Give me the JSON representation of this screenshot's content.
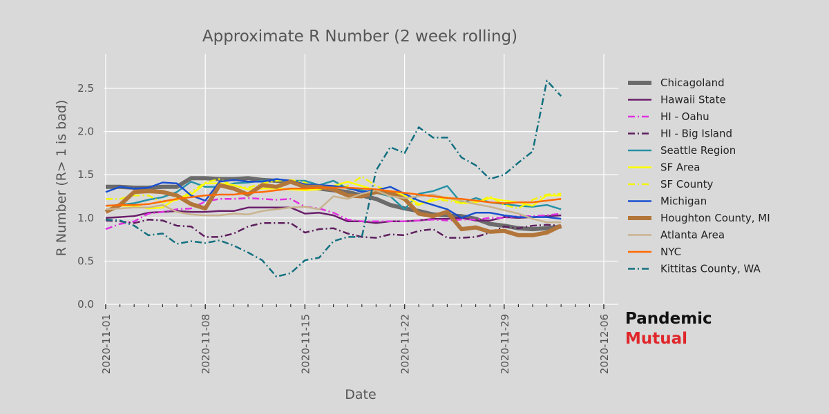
{
  "brand": {
    "line1": "Pandemic",
    "line2": "Mutual"
  },
  "chart_data": {
    "type": "line",
    "title": "Approximate R Number (2 week rolling)",
    "xlabel": "Date",
    "ylabel": "R Number (R> 1 is bad)",
    "xlim": [
      "2020-11-01",
      "2020-12-06"
    ],
    "ylim": [
      0,
      2.9
    ],
    "x_ticks": [
      "2020-11-01",
      "2020-11-08",
      "2020-11-15",
      "2020-11-22",
      "2020-11-29",
      "2020-12-06"
    ],
    "y_ticks": [
      0.0,
      0.5,
      1.0,
      1.5,
      2.0,
      2.5
    ],
    "y_tick_labels": [
      "0.0",
      "0.5",
      "1.0",
      "1.5",
      "2.0",
      "2.5"
    ],
    "grid": true,
    "legend_position": "right",
    "x": [
      "2020-11-01",
      "2020-11-02",
      "2020-11-03",
      "2020-11-04",
      "2020-11-05",
      "2020-11-06",
      "2020-11-07",
      "2020-11-08",
      "2020-11-09",
      "2020-11-10",
      "2020-11-11",
      "2020-11-12",
      "2020-11-13",
      "2020-11-14",
      "2020-11-15",
      "2020-11-16",
      "2020-11-17",
      "2020-11-18",
      "2020-11-19",
      "2020-11-20",
      "2020-11-21",
      "2020-11-22",
      "2020-11-23",
      "2020-11-24",
      "2020-11-25",
      "2020-11-26",
      "2020-11-27",
      "2020-11-28",
      "2020-11-29",
      "2020-11-30",
      "2020-12-01",
      "2020-12-02",
      "2020-12-03"
    ],
    "series": [
      {
        "name": "Chicagoland",
        "color": "#6b6b6b",
        "width": 6,
        "dash": "solid",
        "values": [
          1.36,
          1.36,
          1.35,
          1.35,
          1.36,
          1.36,
          1.46,
          1.46,
          1.45,
          1.45,
          1.46,
          1.44,
          1.43,
          1.42,
          1.36,
          1.34,
          1.32,
          1.3,
          1.26,
          1.22,
          1.15,
          1.11,
          1.08,
          1.04,
          1.03,
          1.02,
          0.99,
          0.93,
          0.91,
          0.88,
          0.87,
          0.88,
          0.9
        ]
      },
      {
        "name": "Hawaii State",
        "color": "#6a1f6a",
        "width": 2.5,
        "dash": "solid",
        "values": [
          1.0,
          1.01,
          1.02,
          1.06,
          1.07,
          1.08,
          1.07,
          1.07,
          1.08,
          1.08,
          1.12,
          1.12,
          1.12,
          1.12,
          1.05,
          1.06,
          1.03,
          0.96,
          0.96,
          0.94,
          0.96,
          0.96,
          0.97,
          0.99,
          0.99,
          1.0,
          0.97,
          0.97,
          1.01,
          1.0,
          1.01,
          1.02,
          1.03
        ]
      },
      {
        "name": "HI - Oahu",
        "color": "#e031e0",
        "width": 2.5,
        "dash": "dashdot",
        "values": [
          0.87,
          0.93,
          0.96,
          1.05,
          1.07,
          1.1,
          1.11,
          1.19,
          1.22,
          1.22,
          1.23,
          1.22,
          1.21,
          1.22,
          1.13,
          1.11,
          1.06,
          0.98,
          0.96,
          0.96,
          0.96,
          0.96,
          0.97,
          0.98,
          0.97,
          0.98,
          0.98,
          1.0,
          1.0,
          1.02,
          1.02,
          1.03,
          1.05
        ]
      },
      {
        "name": "HI - Big Island",
        "color": "#5e1f5e",
        "width": 2.5,
        "dash": "dashdot",
        "values": [
          0.97,
          0.96,
          0.94,
          0.98,
          0.97,
          0.91,
          0.9,
          0.78,
          0.78,
          0.82,
          0.9,
          0.94,
          0.94,
          0.94,
          0.83,
          0.87,
          0.88,
          0.82,
          0.78,
          0.77,
          0.81,
          0.8,
          0.85,
          0.87,
          0.77,
          0.77,
          0.78,
          0.83,
          0.9,
          0.88,
          0.91,
          0.92,
          0.91
        ]
      },
      {
        "name": "Seattle Region",
        "color": "#2592a6",
        "width": 2.5,
        "dash": "solid",
        "values": [
          1.14,
          1.15,
          1.17,
          1.21,
          1.24,
          1.3,
          1.42,
          1.36,
          1.36,
          1.4,
          1.41,
          1.43,
          1.44,
          1.43,
          1.43,
          1.38,
          1.43,
          1.34,
          1.32,
          1.29,
          1.25,
          1.1,
          1.28,
          1.31,
          1.37,
          1.17,
          1.23,
          1.18,
          1.16,
          1.14,
          1.13,
          1.15,
          1.1
        ]
      },
      {
        "name": "SF Area",
        "color": "#ffff00",
        "width": 2.5,
        "dash": "solid",
        "values": [
          1.14,
          1.14,
          1.14,
          1.11,
          1.12,
          1.23,
          1.27,
          1.4,
          1.4,
          1.38,
          1.33,
          1.34,
          1.34,
          1.33,
          1.32,
          1.33,
          1.37,
          1.42,
          1.37,
          1.32,
          1.31,
          1.26,
          1.16,
          1.2,
          1.24,
          1.17,
          1.18,
          1.23,
          1.2,
          1.18,
          1.14,
          1.26,
          1.26
        ]
      },
      {
        "name": "SF County",
        "color": "#f5f500",
        "width": 2.5,
        "dash": "dashdot",
        "values": [
          1.22,
          1.22,
          1.26,
          1.26,
          1.18,
          1.21,
          1.3,
          1.41,
          1.45,
          1.37,
          1.35,
          1.4,
          1.43,
          1.44,
          1.41,
          1.33,
          1.34,
          1.37,
          1.48,
          1.37,
          1.3,
          1.2,
          1.15,
          1.22,
          1.2,
          1.17,
          1.17,
          1.25,
          1.15,
          1.11,
          1.21,
          1.27,
          1.28
        ]
      },
      {
        "name": "Michigan",
        "color": "#1a4fcf",
        "width": 2.5,
        "dash": "solid",
        "values": [
          1.3,
          1.36,
          1.34,
          1.35,
          1.41,
          1.4,
          1.26,
          1.2,
          1.42,
          1.44,
          1.42,
          1.42,
          1.45,
          1.43,
          1.39,
          1.38,
          1.37,
          1.35,
          1.3,
          1.32,
          1.36,
          1.28,
          1.2,
          1.15,
          1.1,
          1.0,
          1.06,
          1.06,
          1.03,
          1.01,
          1.01,
          1.01,
          0.99
        ]
      },
      {
        "name": "Houghton County, MI",
        "color": "#b3763a",
        "width": 6,
        "dash": "solid",
        "values": [
          1.07,
          1.15,
          1.3,
          1.31,
          1.3,
          1.26,
          1.16,
          1.11,
          1.38,
          1.34,
          1.27,
          1.38,
          1.36,
          1.42,
          1.36,
          1.36,
          1.33,
          1.26,
          1.25,
          1.3,
          1.29,
          1.22,
          1.05,
          1.02,
          1.07,
          0.87,
          0.89,
          0.84,
          0.85,
          0.8,
          0.8,
          0.83,
          0.91
        ]
      },
      {
        "name": "Atlanta Area",
        "color": "#c9b38e",
        "width": 2.5,
        "dash": "solid",
        "values": [
          1.1,
          1.11,
          1.12,
          1.12,
          1.15,
          1.07,
          1.04,
          1.03,
          1.03,
          1.05,
          1.04,
          1.08,
          1.1,
          1.12,
          1.13,
          1.1,
          1.25,
          1.22,
          1.28,
          1.32,
          1.25,
          1.23,
          1.25,
          1.27,
          1.23,
          1.2,
          1.16,
          1.13,
          1.09,
          1.05,
          0.99,
          0.95,
          0.95
        ]
      },
      {
        "name": "NYC",
        "color": "#ff6a00",
        "width": 2.5,
        "dash": "solid",
        "values": [
          1.14,
          1.15,
          1.15,
          1.16,
          1.19,
          1.22,
          1.24,
          1.26,
          1.27,
          1.27,
          1.29,
          1.3,
          1.32,
          1.34,
          1.34,
          1.35,
          1.35,
          1.35,
          1.34,
          1.33,
          1.31,
          1.29,
          1.27,
          1.25,
          1.23,
          1.22,
          1.2,
          1.18,
          1.17,
          1.18,
          1.18,
          1.2,
          1.22
        ]
      },
      {
        "name": "Kittitas County, WA",
        "color": "#137080",
        "width": 2.5,
        "dash": "dashdot",
        "values": [
          0.98,
          0.97,
          0.91,
          0.8,
          0.82,
          0.7,
          0.73,
          0.71,
          0.74,
          0.68,
          0.6,
          0.51,
          0.32,
          0.36,
          0.51,
          0.54,
          0.73,
          0.78,
          0.78,
          1.55,
          1.82,
          1.75,
          2.05,
          1.93,
          1.93,
          1.7,
          1.61,
          1.45,
          1.5,
          1.64,
          1.77,
          2.59,
          2.41
        ]
      }
    ]
  }
}
